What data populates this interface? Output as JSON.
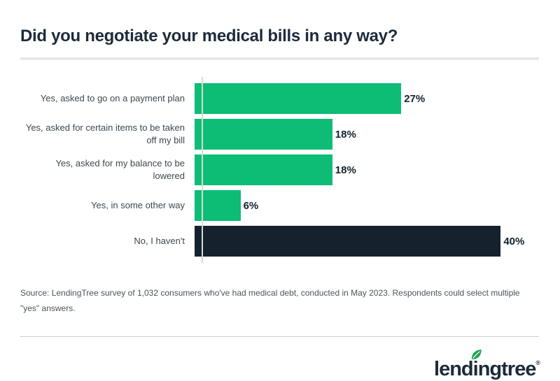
{
  "title": "Did you negotiate your medical bills in any way?",
  "source_note": "Source: LendingTree survey of 1,032 consumers who've had medical debt, conducted in May 2023. Respondents could select multiple \"yes\" answers.",
  "colors": {
    "green": "#0dbd75",
    "navy": "#15222e",
    "leaf_green": "#1ca64c",
    "title_text": "#1d2b3a",
    "label_text": "#3e4750",
    "axis_gray": "#d9d9d9"
  },
  "logo": {
    "wordmark_pre": "lend",
    "wordmark_i": "i",
    "wordmark_post": "ngtree",
    "registered": "®",
    "leaf_icon": "leaf-icon"
  },
  "chart_data": {
    "type": "bar",
    "orientation": "horizontal",
    "title": "Did you negotiate your medical bills in any way?",
    "categories": [
      "Yes, asked to go on a payment plan",
      "Yes, asked for certain items to be taken\noff my bill",
      "Yes, asked for my balance to be\nlowered",
      "Yes, in some other way",
      "No, I haven't"
    ],
    "values": [
      27,
      18,
      18,
      6,
      40
    ],
    "value_labels": [
      "27%",
      "18%",
      "18%",
      "6%",
      "40%"
    ],
    "bar_colors": [
      "green",
      "green",
      "green",
      "green",
      "navy"
    ],
    "xlabel": "",
    "ylabel": "",
    "xlim": [
      0,
      45
    ],
    "grid": false,
    "legend": false
  }
}
